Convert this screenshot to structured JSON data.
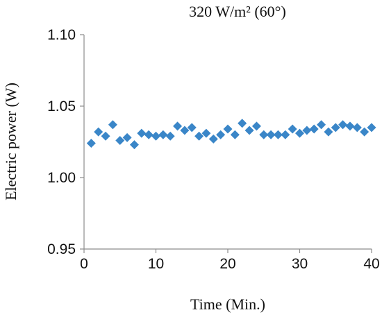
{
  "chart_data": {
    "type": "scatter",
    "title": "320 W/m² (60°)",
    "xlabel": "Time (Min.)",
    "ylabel": "Electric power (W)",
    "xlim": [
      0,
      40
    ],
    "ylim": [
      0.95,
      1.1
    ],
    "x_ticks": [
      "0",
      "10",
      "20",
      "30",
      "40"
    ],
    "y_ticks": [
      "0.95",
      "1.00",
      "1.05",
      "1.10"
    ],
    "grid": false,
    "marker": "diamond",
    "marker_color": "#3a86c8",
    "series": [
      {
        "x": [
          1,
          2,
          3,
          4,
          5,
          6,
          7,
          8,
          9,
          10,
          11,
          12,
          13,
          14,
          15,
          16,
          17,
          18,
          19,
          20,
          21,
          22,
          23,
          24,
          25,
          26,
          27,
          28,
          29,
          30,
          31,
          32,
          33,
          34,
          35,
          36,
          37,
          38,
          39,
          40
        ],
        "values": [
          1.024,
          1.032,
          1.029,
          1.037,
          1.026,
          1.028,
          1.023,
          1.031,
          1.03,
          1.029,
          1.03,
          1.029,
          1.036,
          1.033,
          1.035,
          1.029,
          1.031,
          1.027,
          1.03,
          1.034,
          1.03,
          1.038,
          1.033,
          1.036,
          1.03,
          1.03,
          1.03,
          1.03,
          1.034,
          1.031,
          1.033,
          1.034,
          1.037,
          1.032,
          1.035,
          1.037,
          1.036,
          1.035,
          1.032,
          1.035
        ]
      }
    ]
  }
}
